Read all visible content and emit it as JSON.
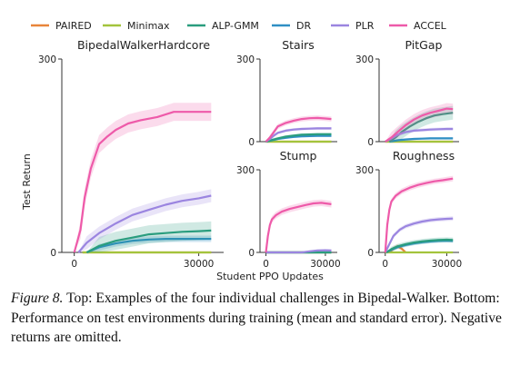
{
  "figure": {
    "caption_label": "Figure 8.",
    "caption_text": " Top: Examples of the four individual challenges in Bipedal-Walker. Bottom: Performance on test environments during training (mean and standard error). Negative returns are omitted.",
    "ylabel": "Test Return",
    "xlabel": "Student PPO Updates"
  },
  "legend": [
    {
      "name": "PAIRED",
      "color": "#e8853a"
    },
    {
      "name": "Minimax",
      "color": "#a3c43c"
    },
    {
      "name": "ALP-GMM",
      "color": "#2a9d7e"
    },
    {
      "name": "DR",
      "color": "#2f8fc4"
    },
    {
      "name": "PLR",
      "color": "#9b85e0"
    },
    {
      "name": "ACCEL",
      "color": "#ee5aa9"
    }
  ],
  "chart_data": [
    {
      "type": "line",
      "title": "BipedalWalkerHardcore",
      "ylim": [
        0,
        300
      ],
      "xlim": [
        -3000,
        36000
      ],
      "yticks": [
        "0",
        "300"
      ],
      "xticks": [
        "0",
        "30000"
      ],
      "series": [
        {
          "name": "ACCEL",
          "x": [
            0,
            1500,
            2500,
            4000,
            6000,
            8000,
            10000,
            13000,
            16000,
            20000,
            24000,
            26000,
            28000,
            30000,
            33000
          ],
          "y": [
            0,
            35,
            85,
            130,
            168,
            180,
            190,
            200,
            205,
            210,
            218,
            218,
            218,
            218,
            218
          ],
          "err": 14
        },
        {
          "name": "PLR",
          "x": [
            1000,
            3000,
            6000,
            10000,
            14000,
            18000,
            22000,
            26000,
            30000,
            33000
          ],
          "y": [
            0,
            15,
            30,
            45,
            58,
            66,
            74,
            80,
            84,
            88
          ],
          "err": 10
        },
        {
          "name": "ALP-GMM",
          "x": [
            3000,
            6000,
            10000,
            14000,
            18000,
            22000,
            26000,
            30000,
            33000
          ],
          "y": [
            0,
            10,
            18,
            23,
            28,
            30,
            32,
            33,
            34
          ],
          "err": 14
        },
        {
          "name": "DR",
          "x": [
            3000,
            6000,
            10000,
            14000,
            18000,
            22000,
            26000,
            30000,
            33000
          ],
          "y": [
            0,
            8,
            14,
            18,
            20,
            21,
            21,
            21,
            21
          ],
          "err": 5
        },
        {
          "name": "Minimax",
          "x": [
            2000,
            4000,
            8000,
            12000,
            16000,
            20000,
            24000,
            28000,
            33000
          ],
          "y": [
            0,
            0,
            0,
            0,
            0,
            0,
            0,
            0,
            0
          ],
          "err": 0
        },
        {
          "name": "PAIRED",
          "x": [
            2000,
            4000,
            8000,
            12000,
            16000,
            20000,
            24000,
            28000,
            33000
          ],
          "y": [
            0,
            0,
            0,
            0,
            0,
            0,
            0,
            0,
            0
          ],
          "err": 0
        }
      ]
    },
    {
      "type": "line",
      "title": "Stairs",
      "ylim": [
        0,
        300
      ],
      "xlim": [
        -3000,
        36000
      ],
      "yticks": [
        "300",
        "0"
      ],
      "xticks": [],
      "series": [
        {
          "name": "ACCEL",
          "x": [
            0,
            2000,
            4000,
            6000,
            10000,
            14000,
            18000,
            22000,
            26000,
            30000,
            33000
          ],
          "y": [
            0,
            15,
            35,
            55,
            68,
            76,
            82,
            85,
            86,
            84,
            82
          ],
          "err": 9
        },
        {
          "name": "PLR",
          "x": [
            0,
            2000,
            4000,
            6000,
            10000,
            14000,
            18000,
            22000,
            26000,
            30000,
            33000
          ],
          "y": [
            0,
            10,
            22,
            32,
            40,
            44,
            46,
            47,
            48,
            48,
            48
          ],
          "err": 5
        },
        {
          "name": "ALP-GMM",
          "x": [
            0,
            3000,
            6000,
            10000,
            14000,
            18000,
            22000,
            26000,
            30000,
            33000
          ],
          "y": [
            0,
            6,
            12,
            18,
            22,
            25,
            26,
            27,
            27,
            27
          ],
          "err": 5
        },
        {
          "name": "DR",
          "x": [
            0,
            3000,
            6000,
            10000,
            14000,
            18000,
            22000,
            26000,
            30000,
            33000
          ],
          "y": [
            0,
            5,
            10,
            14,
            17,
            19,
            20,
            21,
            21,
            21
          ],
          "err": 4
        },
        {
          "name": "Minimax",
          "x": [
            0,
            33000
          ],
          "y": [
            0,
            0
          ],
          "err": 0
        },
        {
          "name": "PAIRED",
          "x": [
            0,
            33000
          ],
          "y": [
            0,
            0
          ],
          "err": 0
        }
      ]
    },
    {
      "type": "line",
      "title": "PitGap",
      "ylim": [
        0,
        300
      ],
      "xlim": [
        -3000,
        36000
      ],
      "yticks": [
        "300",
        "0"
      ],
      "xticks": [],
      "series": [
        {
          "name": "ACCEL",
          "x": [
            0,
            3000,
            6000,
            10000,
            14000,
            18000,
            22000,
            26000,
            30000,
            33000
          ],
          "y": [
            0,
            15,
            35,
            60,
            80,
            95,
            105,
            112,
            120,
            118
          ],
          "err": 20
        },
        {
          "name": "ALP-GMM",
          "x": [
            2000,
            5000,
            8000,
            12000,
            16000,
            20000,
            24000,
            28000,
            33000
          ],
          "y": [
            0,
            15,
            35,
            55,
            72,
            85,
            95,
            100,
            105
          ],
          "err": 25
        },
        {
          "name": "PLR",
          "x": [
            0,
            3000,
            6000,
            10000,
            14000,
            18000,
            22000,
            26000,
            30000,
            33000
          ],
          "y": [
            0,
            12,
            25,
            35,
            40,
            42,
            44,
            45,
            46,
            46
          ],
          "err": 6
        },
        {
          "name": "DR",
          "x": [
            2000,
            6000,
            10000,
            14000,
            18000,
            22000,
            26000,
            30000,
            33000
          ],
          "y": [
            0,
            5,
            8,
            10,
            11,
            12,
            12,
            12,
            12
          ],
          "err": 4
        },
        {
          "name": "Minimax",
          "x": [
            0,
            33000
          ],
          "y": [
            0,
            0
          ],
          "err": 0
        },
        {
          "name": "PAIRED",
          "x": [
            0,
            33000
          ],
          "y": [
            0,
            0
          ],
          "err": 0
        }
      ]
    },
    {
      "type": "line",
      "title": "Stump",
      "ylim": [
        0,
        300
      ],
      "xlim": [
        -3000,
        36000
      ],
      "yticks": [
        "300",
        "0"
      ],
      "xticks": [
        "0",
        "30000"
      ],
      "series": [
        {
          "name": "ACCEL",
          "x": [
            0,
            1000,
            2000,
            3000,
            5000,
            8000,
            12000,
            16000,
            20000,
            24000,
            28000,
            30000,
            33000
          ],
          "y": [
            0,
            60,
            100,
            120,
            135,
            148,
            158,
            165,
            172,
            178,
            180,
            178,
            175
          ],
          "err": 12
        },
        {
          "name": "PLR",
          "x": [
            0,
            6000,
            12000,
            18000,
            22000,
            26000,
            30000,
            33000
          ],
          "y": [
            0,
            0,
            0,
            0,
            4,
            7,
            8,
            7
          ],
          "err": 3
        },
        {
          "name": "ALP-GMM",
          "x": [
            0,
            33000
          ],
          "y": [
            0,
            0
          ],
          "err": 0
        },
        {
          "name": "DR",
          "x": [
            0,
            33000
          ],
          "y": [
            0,
            0
          ],
          "err": 0
        },
        {
          "name": "Minimax",
          "x": [
            0,
            33000
          ],
          "y": [
            0,
            0
          ],
          "err": 0
        },
        {
          "name": "PAIRED",
          "x": [
            0,
            33000
          ],
          "y": [
            0,
            0
          ],
          "err": 0
        }
      ]
    },
    {
      "type": "line",
      "title": "Roughness",
      "ylim": [
        0,
        300
      ],
      "xlim": [
        -3000,
        36000
      ],
      "yticks": [
        "300",
        "0"
      ],
      "xticks": [
        "0",
        "30000"
      ],
      "series": [
        {
          "name": "ACCEL",
          "x": [
            0,
            1000,
            2000,
            3000,
            5000,
            8000,
            12000,
            16000,
            20000,
            24000,
            28000,
            33000
          ],
          "y": [
            0,
            100,
            155,
            185,
            205,
            222,
            235,
            245,
            252,
            258,
            262,
            268
          ],
          "err": 10
        },
        {
          "name": "PLR",
          "x": [
            0,
            2000,
            4000,
            7000,
            10000,
            14000,
            18000,
            22000,
            26000,
            30000,
            33000
          ],
          "y": [
            0,
            30,
            60,
            82,
            95,
            105,
            112,
            117,
            120,
            122,
            123
          ],
          "err": 8
        },
        {
          "name": "ALP-GMM",
          "x": [
            500,
            3000,
            6000,
            10000,
            14000,
            18000,
            22000,
            26000,
            30000,
            33000
          ],
          "y": [
            0,
            12,
            22,
            30,
            36,
            40,
            43,
            45,
            46,
            45
          ],
          "err": 9
        },
        {
          "name": "DR",
          "x": [
            500,
            3000,
            6000,
            10000,
            14000,
            18000,
            22000,
            26000,
            30000,
            33000
          ],
          "y": [
            0,
            10,
            19,
            27,
            33,
            37,
            40,
            42,
            43,
            42
          ],
          "err": 7
        },
        {
          "name": "PAIRED",
          "x": [
            2000,
            4000,
            6000,
            8000,
            10000
          ],
          "y": [
            0,
            14,
            22,
            14,
            0
          ],
          "err": 8
        },
        {
          "name": "Minimax",
          "x": [
            0,
            33000
          ],
          "y": [
            0,
            0
          ],
          "err": 0
        }
      ]
    }
  ]
}
